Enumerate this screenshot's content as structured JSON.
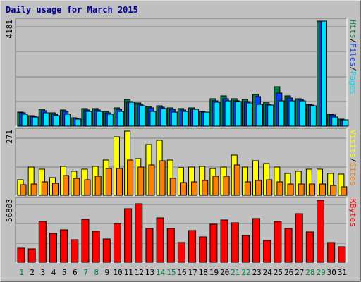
{
  "chart_title": "Daily usage for March 2015",
  "colors": {
    "frame_bg": "#c0c0c0",
    "panel_bg": "#c0c0c0",
    "hits": "#008040",
    "files": "#0040ff",
    "pages": "#00e0ff",
    "visits": "#ffff00",
    "sites": "#ff8000",
    "kbytes": "#ff0000",
    "weekend_day_label": "#008040",
    "weekday_day_label": "#000000",
    "title": "#0000a0"
  },
  "chart_data": [
    {
      "type": "bar",
      "panel": "hits-files-pages",
      "max_label": "4181",
      "ylim": [
        0,
        4181
      ],
      "legend": [
        {
          "text": "Pages",
          "color": "#00e0ff"
        },
        {
          "text": "/",
          "color": "#000000"
        },
        {
          "text": "Files",
          "color": "#0040ff"
        },
        {
          "text": "/",
          "color": "#000000"
        },
        {
          "text": "Hits",
          "color": "#008040"
        }
      ],
      "categories": [
        "1",
        "2",
        "3",
        "4",
        "5",
        "6",
        "7",
        "8",
        "9",
        "10",
        "11",
        "12",
        "13",
        "14",
        "15",
        "16",
        "17",
        "18",
        "19",
        "20",
        "21",
        "22",
        "23",
        "24",
        "25",
        "26",
        "27",
        "28",
        "29",
        "30",
        "31"
      ],
      "series": [
        {
          "name": "Hits",
          "color": "#008040",
          "values": [
            567,
            432,
            676,
            540,
            648,
            324,
            703,
            703,
            595,
            730,
            1054,
            919,
            784,
            811,
            730,
            703,
            730,
            595,
            1081,
            1216,
            1081,
            1054,
            1270,
            946,
            1568,
            1216,
            1108,
            865,
            4181,
            486,
            270
          ]
        },
        {
          "name": "Files",
          "color": "#0040ff",
          "values": [
            540,
            405,
            621,
            486,
            594,
            297,
            648,
            648,
            540,
            676,
            973,
            865,
            730,
            757,
            676,
            648,
            676,
            567,
            1000,
            1108,
            1000,
            973,
            1189,
            865,
            1324,
            1135,
            1054,
            838,
            4181,
            459,
            243
          ]
        },
        {
          "name": "Pages",
          "color": "#00e0ff",
          "values": [
            486,
            378,
            540,
            432,
            486,
            270,
            594,
            594,
            486,
            594,
            946,
            811,
            595,
            703,
            567,
            595,
            676,
            567,
            946,
            1000,
            973,
            919,
            865,
            838,
            1000,
            1000,
            1000,
            811,
            4181,
            351,
            243
          ]
        }
      ]
    },
    {
      "type": "bar",
      "panel": "visits-sites",
      "max_label": "271",
      "ylim": [
        0,
        271
      ],
      "legend": [
        {
          "text": "Sites",
          "color": "#ff8000"
        },
        {
          "text": "/",
          "color": "#000000"
        },
        {
          "text": "Visits",
          "color": "#ffff00"
        }
      ],
      "categories": [
        "1",
        "2",
        "3",
        "4",
        "5",
        "6",
        "7",
        "8",
        "9",
        "10",
        "11",
        "12",
        "13",
        "14",
        "15",
        "16",
        "17",
        "18",
        "19",
        "20",
        "21",
        "22",
        "23",
        "24",
        "25",
        "26",
        "27",
        "28",
        "29",
        "30",
        "31"
      ],
      "series": [
        {
          "name": "Visits",
          "color": "#ffff00",
          "values": [
            66,
            118,
            110,
            75,
            123,
            100,
            110,
            123,
            150,
            246,
            271,
            155,
            214,
            232,
            150,
            115,
            118,
            123,
            114,
            118,
            170,
            118,
            145,
            135,
            118,
            93,
            100,
            110,
            110,
            93,
            90
          ]
        },
        {
          "name": "Sites",
          "color": "#ff8000",
          "values": [
            44,
            49,
            57,
            51,
            84,
            71,
            66,
            80,
            114,
            114,
            150,
            118,
            129,
            147,
            71,
            54,
            57,
            62,
            80,
            80,
            129,
            57,
            62,
            66,
            57,
            49,
            49,
            49,
            49,
            41,
            35
          ]
        }
      ]
    },
    {
      "type": "bar",
      "panel": "kbytes",
      "max_label": "56803",
      "ylim": [
        0,
        56803
      ],
      "legend": [
        {
          "text": "KBytes",
          "color": "#ff0000"
        }
      ],
      "categories": [
        "1",
        "2",
        "3",
        "4",
        "5",
        "6",
        "7",
        "8",
        "9",
        "10",
        "11",
        "12",
        "13",
        "14",
        "15",
        "16",
        "17",
        "18",
        "19",
        "20",
        "21",
        "22",
        "23",
        "24",
        "25",
        "26",
        "27",
        "28",
        "29",
        "30",
        "31"
      ],
      "series": [
        {
          "name": "KBytes",
          "color": "#ff0000",
          "values": [
            13000,
            12100,
            37400,
            26200,
            29400,
            20700,
            39600,
            28500,
            21600,
            35300,
            48900,
            53400,
            31100,
            40500,
            31000,
            17800,
            29200,
            23100,
            35100,
            38700,
            36100,
            24600,
            39700,
            19900,
            37200,
            30800,
            44400,
            27600,
            56803,
            18000,
            14000
          ]
        }
      ]
    }
  ]
}
